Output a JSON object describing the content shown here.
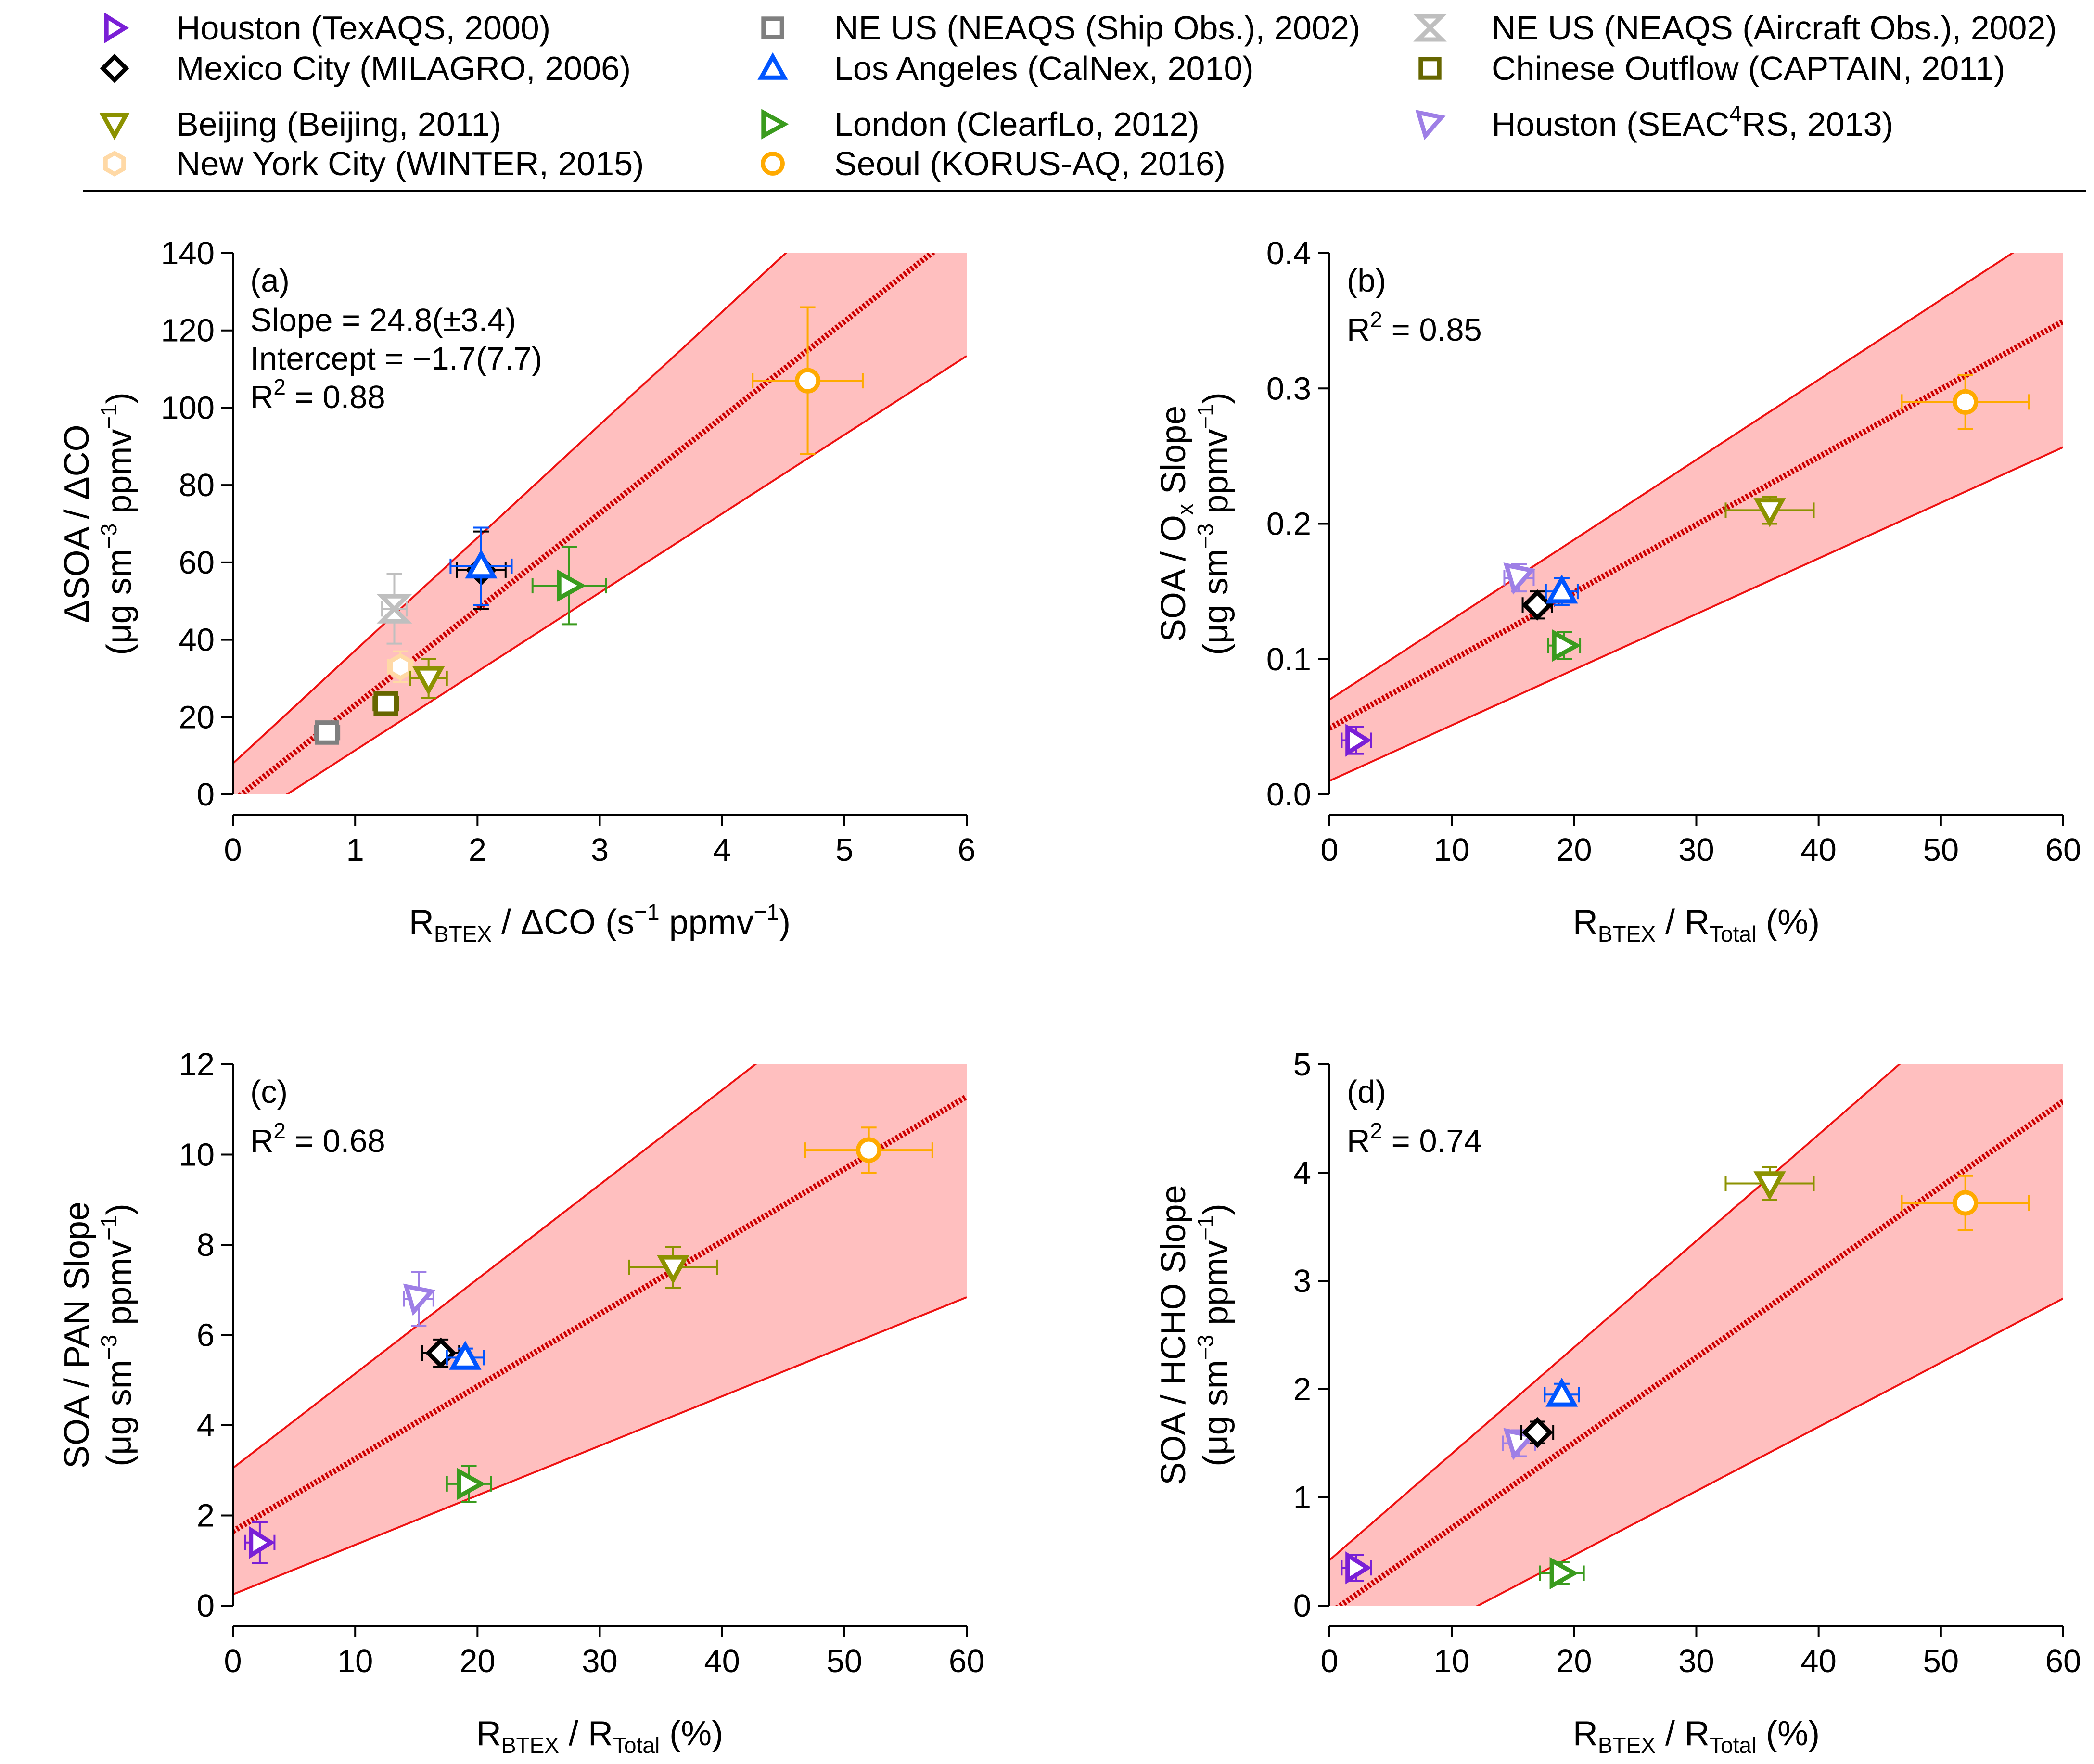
{
  "legend": [
    {
      "key": "hou2000",
      "label": "Houston (TexAQS, 2000)",
      "marker": "tri-right",
      "color": "#7a1fd6"
    },
    {
      "key": "neship",
      "label": "NE US (NEAQS (Ship Obs.), 2002)",
      "marker": "square",
      "color": "#7f7f7f"
    },
    {
      "key": "neair",
      "label": "NE US (NEAQS (Aircraft Obs.), 2002)",
      "marker": "hourglass",
      "color": "#bfbfbf"
    },
    {
      "key": "mex",
      "label": "Mexico City (MILAGRO, 2006)",
      "marker": "diamond",
      "color": "#000000"
    },
    {
      "key": "la",
      "label": "Los Angeles (CalNex, 2010)",
      "marker": "tri-up",
      "color": "#0055ff"
    },
    {
      "key": "chn",
      "label": "Chinese Outflow (CAPTAIN, 2011)",
      "marker": "square",
      "color": "#666600"
    },
    {
      "key": "bj",
      "label": "Beijing (Beijing, 2011)",
      "marker": "tri-down",
      "color": "#8c9200"
    },
    {
      "key": "lon",
      "label": "London (ClearfLo, 2012)",
      "marker": "tri-right-lon",
      "color": "#3a9b1e"
    },
    {
      "key": "hou2013",
      "label": "Houston (SEAC",
      "label_sup": "4",
      "label_tail": "RS, 2013)",
      "marker": "tri-down-left",
      "color": "#9e7fe6"
    },
    {
      "key": "nyc",
      "label": "New York City (WINTER, 2015)",
      "marker": "hexagon",
      "color": "#ffd9a6"
    },
    {
      "key": "seo",
      "label": "Seoul (KORUS-AQ, 2016)",
      "marker": "circle",
      "color": "#ffaa00"
    }
  ],
  "chart_data": [
    {
      "panel": "a",
      "type": "scatter",
      "panel_label": "(a)",
      "annotations": [
        "Slope = 24.8(±3.4)",
        "Intercept = −1.7(7.7)",
        "R",
        "2",
        " = 0.88"
      ],
      "ylabel_line1": "ΔSOA / ΔCO",
      "ylabel_line2": {
        "pre": "(μg sm",
        "sup1": "−3",
        "mid": " ppmv",
        "sup2": "−1",
        "post": ")"
      },
      "xlabel": {
        "pre": "R",
        "sub": "BTEX",
        "post": " / ΔCO (s",
        "sup": "−1",
        "tail": " ppmv",
        "sup2": "−1",
        "end": ")"
      },
      "xlim": [
        0,
        6
      ],
      "ylim": [
        0,
        140
      ],
      "xticks": [
        0,
        1,
        2,
        3,
        4,
        5,
        6
      ],
      "yticks": [
        0,
        20,
        40,
        60,
        80,
        100,
        120,
        140
      ],
      "ytick_labels": [
        "0",
        "20",
        "40",
        "60",
        "80",
        "100",
        "120",
        "140"
      ],
      "fit": {
        "slope": 24.8,
        "intercept": -1.7
      },
      "band_upper": {
        "slope": 29.2,
        "intercept": 8.0
      },
      "band_lower": {
        "slope": 20.4,
        "intercept": -9.0
      },
      "points": [
        {
          "key": "neship",
          "x": 0.77,
          "y": 16,
          "xerr": 0.1,
          "yerr": 2
        },
        {
          "key": "chn",
          "x": 1.25,
          "y": 23.5,
          "xerr": 0.1,
          "yerr": 3
        },
        {
          "key": "nyc",
          "x": 1.37,
          "y": 33,
          "xerr": 0.1,
          "yerr": 4
        },
        {
          "key": "bj",
          "x": 1.6,
          "y": 30,
          "xerr": 0.15,
          "yerr": 5
        },
        {
          "key": "neair",
          "x": 1.32,
          "y": 48,
          "xerr": 0.1,
          "yerr": 9
        },
        {
          "key": "mex",
          "x": 2.03,
          "y": 58,
          "xerr": 0.2,
          "yerr": 10
        },
        {
          "key": "la",
          "x": 2.03,
          "y": 59,
          "xerr": 0.25,
          "yerr": 10
        },
        {
          "key": "lon",
          "x": 2.75,
          "y": 54,
          "xerr": 0.3,
          "yerr": 10
        },
        {
          "key": "seo",
          "x": 4.7,
          "y": 107,
          "xerr": 0.45,
          "yerr": 19
        }
      ]
    },
    {
      "panel": "b",
      "type": "scatter",
      "panel_label": "(b)",
      "annotations": [
        "R",
        "2",
        " = 0.85"
      ],
      "ylabel_line1": {
        "pre": "SOA / O",
        "sub": "x",
        "post": " Slope"
      },
      "ylabel_line2": {
        "pre": "(μg sm",
        "sup1": "−3",
        "mid": " ppmv",
        "sup2": "−1",
        "post": ")"
      },
      "xlabel": {
        "pre": "R",
        "sub": "BTEX",
        "post": " / R",
        "sub2": "Total",
        "end": " (%)"
      },
      "xlim": [
        0,
        60
      ],
      "ylim": [
        0,
        0.4
      ],
      "xticks": [
        0,
        10,
        20,
        30,
        40,
        50,
        60
      ],
      "yticks": [
        0,
        0.1,
        0.2,
        0.3,
        0.4
      ],
      "ytick_labels": [
        "0.0",
        "0.1",
        "0.2",
        "0.3",
        "0.4"
      ],
      "fit": {
        "slope": 0.00501,
        "intercept": 0.049
      },
      "band_upper": {
        "slope": 0.00591,
        "intercept": 0.07
      },
      "band_lower": {
        "slope": 0.00411,
        "intercept": 0.01
      },
      "points": [
        {
          "key": "hou2000",
          "x": 2.2,
          "y": 0.04,
          "xerr": 1.2,
          "yerr": 0.01
        },
        {
          "key": "hou2013",
          "x": 15.5,
          "y": 0.16,
          "xerr": 1.2,
          "yerr": 0.01
        },
        {
          "key": "mex",
          "x": 17,
          "y": 0.14,
          "xerr": 1.2,
          "yerr": 0.01
        },
        {
          "key": "la",
          "x": 19,
          "y": 0.15,
          "xerr": 1.3,
          "yerr": 0.01
        },
        {
          "key": "lon",
          "x": 19.2,
          "y": 0.11,
          "xerr": 1.3,
          "yerr": 0.01
        },
        {
          "key": "bj",
          "x": 36,
          "y": 0.21,
          "xerr": 3.6,
          "yerr": 0.01
        },
        {
          "key": "seo",
          "x": 52,
          "y": 0.29,
          "xerr": 5.2,
          "yerr": 0.02
        }
      ]
    },
    {
      "panel": "c",
      "type": "scatter",
      "panel_label": "(c)",
      "annotations": [
        "R",
        "2",
        " = 0.68"
      ],
      "ylabel_line1": "SOA / PAN Slope",
      "ylabel_line2": {
        "pre": "(μg sm",
        "sup1": "−3",
        "mid": " ppmv",
        "sup2": "−1",
        "post": ")"
      },
      "xlabel": {
        "pre": "R",
        "sub": "BTEX",
        "post": " / R",
        "sub2": "Total",
        "end": " (%)"
      },
      "xlim": [
        0,
        60
      ],
      "ylim": [
        0,
        12
      ],
      "xticks": [
        0,
        10,
        20,
        30,
        40,
        50,
        60
      ],
      "yticks": [
        0,
        2,
        4,
        6,
        8,
        10,
        12
      ],
      "ytick_labels": [
        "0",
        "2",
        "4",
        "6",
        "8",
        "10",
        "12"
      ],
      "fit": {
        "slope": 0.1606,
        "intercept": 1.65
      },
      "band_upper": {
        "slope": 0.2095,
        "intercept": 3.05
      },
      "band_lower": {
        "slope": 0.1098,
        "intercept": 0.25
      },
      "points": [
        {
          "key": "hou2000",
          "x": 2.2,
          "y": 1.4,
          "xerr": 1.2,
          "yerr": 0.45
        },
        {
          "key": "hou2013",
          "x": 15.2,
          "y": 6.8,
          "xerr": 1.2,
          "yerr": 0.6
        },
        {
          "key": "mex",
          "x": 17,
          "y": 5.6,
          "xerr": 1.5,
          "yerr": 0.3
        },
        {
          "key": "la",
          "x": 19,
          "y": 5.5,
          "xerr": 1.5,
          "yerr": 0.2
        },
        {
          "key": "lon",
          "x": 19.3,
          "y": 2.7,
          "xerr": 1.8,
          "yerr": 0.4
        },
        {
          "key": "bj",
          "x": 36,
          "y": 7.5,
          "xerr": 3.6,
          "yerr": 0.45
        },
        {
          "key": "seo",
          "x": 52,
          "y": 10.1,
          "xerr": 5.2,
          "yerr": 0.5
        }
      ]
    },
    {
      "panel": "d",
      "type": "scatter",
      "panel_label": "(d)",
      "annotations": [
        "R",
        "2",
        " = 0.74"
      ],
      "ylabel_line1": "SOA / HCHO Slope",
      "ylabel_line2": {
        "pre": "(μg sm",
        "sup1": "−3",
        "mid": " ppmv",
        "sup2": "−1",
        "post": ")"
      },
      "xlabel": {
        "pre": "R",
        "sub": "BTEX",
        "post": " / R",
        "sub2": "Total",
        "end": " (%)"
      },
      "xlim": [
        0,
        60
      ],
      "ylim": [
        0,
        5
      ],
      "xticks": [
        0,
        10,
        20,
        30,
        40,
        50,
        60
      ],
      "yticks": [
        0,
        1,
        2,
        3,
        4,
        5
      ],
      "ytick_labels": [
        "0",
        "1",
        "2",
        "3",
        "4",
        "5"
      ],
      "fit": {
        "slope": 0.0788,
        "intercept": -0.07
      },
      "band_upper": {
        "slope": 0.0983,
        "intercept": 0.42
      },
      "band_lower": {
        "slope": 0.0593,
        "intercept": -0.72
      },
      "points": [
        {
          "key": "hou2000",
          "x": 2.2,
          "y": 0.35,
          "xerr": 1.2,
          "yerr": 0.12
        },
        {
          "key": "hou2013",
          "x": 15.5,
          "y": 1.5,
          "xerr": 1.3,
          "yerr": 0.12
        },
        {
          "key": "mex",
          "x": 17,
          "y": 1.6,
          "xerr": 1.3,
          "yerr": 0.1
        },
        {
          "key": "la",
          "x": 19,
          "y": 1.95,
          "xerr": 1.4,
          "yerr": 0.1
        },
        {
          "key": "lon",
          "x": 19,
          "y": 0.3,
          "xerr": 1.8,
          "yerr": 0.1
        },
        {
          "key": "bj",
          "x": 36,
          "y": 3.9,
          "xerr": 3.6,
          "yerr": 0.15
        },
        {
          "key": "seo",
          "x": 52,
          "y": 3.72,
          "xerr": 5.2,
          "yerr": 0.25
        }
      ]
    }
  ]
}
